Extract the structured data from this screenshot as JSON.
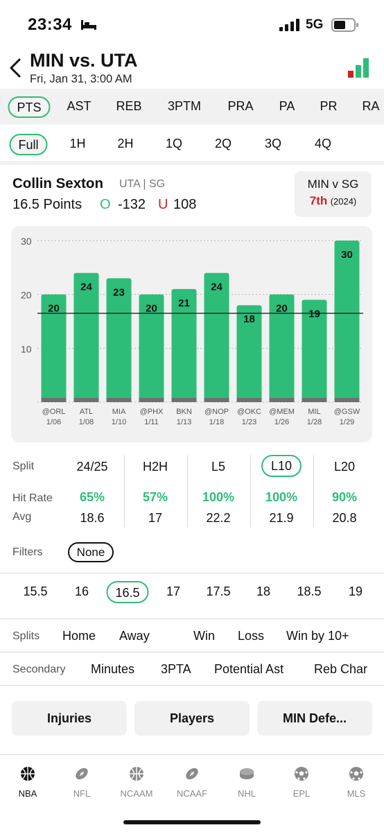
{
  "status_bar": {
    "time": "23:34",
    "network": "5G"
  },
  "header": {
    "title": "MIN vs. UTA",
    "subtitle": "Fri, Jan 31, 3:00 AM"
  },
  "stat_tabs": [
    "PTS",
    "AST",
    "REB",
    "3PTM",
    "PRA",
    "PA",
    "PR",
    "RA"
  ],
  "stat_tab_active": "PTS",
  "period_tabs": [
    "Full",
    "1H",
    "2H",
    "1Q",
    "2Q",
    "3Q",
    "4Q"
  ],
  "period_tab_active": "Full",
  "player": {
    "name": "Collin Sexton",
    "team_pos": "UTA | SG",
    "line": "16.5 Points",
    "over_mark": "O",
    "over_price": "-132",
    "under_mark": "U",
    "under_price": "108"
  },
  "matchup": {
    "title": "MIN v SG",
    "rank": "7th",
    "season": "(2024)"
  },
  "chart_data": {
    "type": "bar",
    "categories": [
      "@ORL 1/06",
      "ATL 1/08",
      "MIA 1/10",
      "@PHX 1/11",
      "BKN 1/13",
      "@NOP 1/18",
      "@OKC 1/23",
      "@MEM 1/26",
      "MIL 1/28",
      "@GSW 1/29"
    ],
    "opponents": [
      "@ORL",
      "ATL",
      "MIA",
      "@PHX",
      "BKN",
      "@NOP",
      "@OKC",
      "@MEM",
      "MIL",
      "@GSW"
    ],
    "dates": [
      "1/06",
      "1/08",
      "1/10",
      "1/11",
      "1/13",
      "1/18",
      "1/23",
      "1/26",
      "1/28",
      "1/29"
    ],
    "values": [
      20,
      24,
      23,
      20,
      21,
      24,
      18,
      20,
      19,
      30
    ],
    "data_labels": [
      "20",
      "24",
      "23",
      "20",
      "21",
      "24",
      "18",
      "20",
      "19",
      "30"
    ],
    "ytick_labels": [
      "30",
      "20",
      "10"
    ],
    "yticks": [
      30,
      20,
      10
    ],
    "ylim": [
      0,
      30
    ],
    "threshold": 16.5,
    "bar_color": "#2dbd78",
    "grid": true
  },
  "splits": {
    "label": "Split",
    "hit_label": "Hit Rate",
    "avg_label": "Avg",
    "columns": [
      {
        "head": "24/25",
        "hit": "65%",
        "avg": "18.6"
      },
      {
        "head": "H2H",
        "hit": "57%",
        "avg": "17"
      },
      {
        "head": "L5",
        "hit": "100%",
        "avg": "22.2"
      },
      {
        "head": "L10",
        "hit": "100%",
        "avg": "21.9"
      },
      {
        "head": "L20",
        "hit": "90%",
        "avg": "20.8"
      }
    ],
    "active": "L10"
  },
  "filters": {
    "label": "Filters",
    "value": "None"
  },
  "lines": [
    "15.5",
    "16",
    "16.5",
    "17",
    "17.5",
    "18",
    "18.5",
    "19"
  ],
  "line_active": "16.5",
  "splits_row": {
    "label": "Splits",
    "items": [
      "Home",
      "Away",
      "Win",
      "Loss",
      "Win by 10+"
    ]
  },
  "secondary_row": {
    "label": "Secondary",
    "items": [
      "Minutes",
      "3PTA",
      "Potential Ast",
      "Reb Char"
    ]
  },
  "actions": [
    "Injuries",
    "Players",
    "MIN Defe..."
  ],
  "tabbar": [
    {
      "label": "NBA",
      "icon": "basketball-icon"
    },
    {
      "label": "NFL",
      "icon": "football-icon"
    },
    {
      "label": "NCAAM",
      "icon": "basketball-icon"
    },
    {
      "label": "NCAAF",
      "icon": "football-icon"
    },
    {
      "label": "NHL",
      "icon": "hockey-puck-icon"
    },
    {
      "label": "EPL",
      "icon": "soccer-ball-icon"
    },
    {
      "label": "MLS",
      "icon": "soccer-ball-icon"
    }
  ],
  "tab_active": "NBA",
  "colors": {
    "accent": "#2dbd78",
    "under": "#d71f1f",
    "bar_base": "#6f6f6f"
  }
}
